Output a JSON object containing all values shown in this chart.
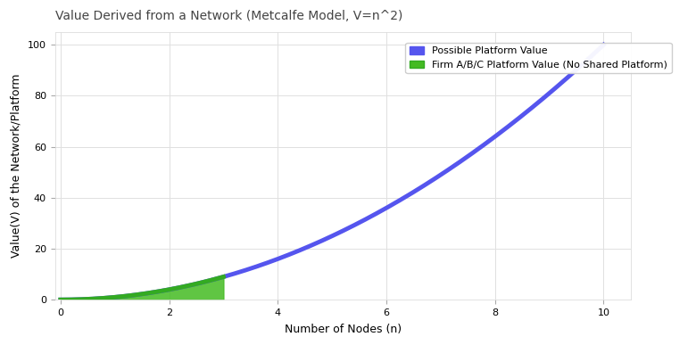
{
  "title": "Value Derived from a Network (Metcalfe Model, V=n^2)",
  "xlabel": "Number of Nodes (n)",
  "ylabel": "Value(V) of the Network/Platform",
  "x_full_start": 0,
  "x_full_end": 10,
  "x_firm_start": 0,
  "x_firm_end": 3,
  "ylim_min": 0,
  "ylim_max": 105,
  "xlim_min": -0.1,
  "xlim_max": 10.5,
  "xticks": [
    0,
    2,
    4,
    6,
    8,
    10
  ],
  "yticks": [
    0,
    20,
    40,
    60,
    80,
    100
  ],
  "line_color_possible": "#5555ee",
  "line_color_firm": "#33aa22",
  "fill_color_firm": "#44bb22",
  "background_color": "#ffffff",
  "grid_color": "#e0e0e0",
  "legend_label_possible": "Possible Platform Value",
  "legend_label_firm": "Firm A/B/C Platform Value (No Shared Platform)",
  "title_fontsize": 10,
  "axis_label_fontsize": 9,
  "tick_fontsize": 8,
  "legend_fontsize": 8,
  "line_width": 3.5,
  "fill_alpha_firm": 0.85
}
